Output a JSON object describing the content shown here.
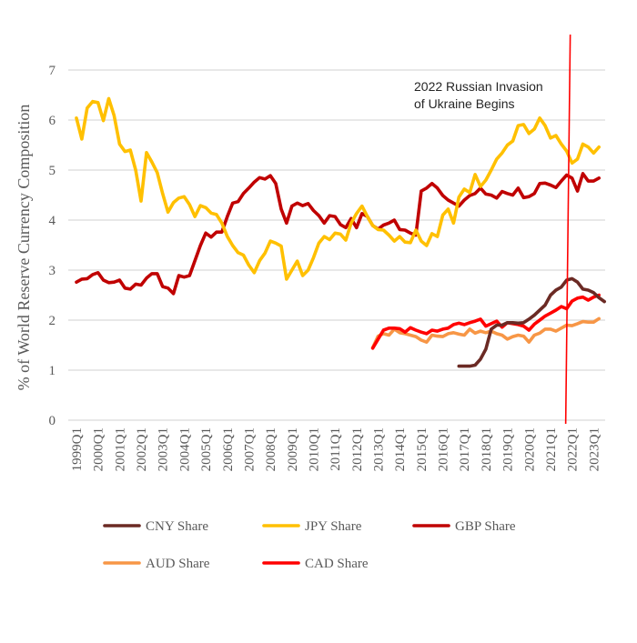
{
  "chart_data": {
    "type": "line",
    "title": "",
    "xlabel": "",
    "ylabel": "% of World Reserve Currency Composition",
    "ylim": [
      0,
      7
    ],
    "yticks": [
      0,
      1,
      2,
      3,
      4,
      5,
      6,
      7
    ],
    "grid": true,
    "legend_position": "bottom",
    "x_start": "1999Q1",
    "x_end": "2023Q2",
    "x_ticklabels": [
      "1999Q1",
      "2000Q1",
      "2001Q1",
      "2002Q1",
      "2003Q1",
      "2004Q1",
      "2005Q1",
      "2006Q1",
      "2007Q1",
      "2008Q1",
      "2009Q1",
      "2010Q1",
      "2011Q1",
      "2012Q1",
      "2013Q1",
      "2014Q1",
      "2015Q1",
      "2016Q1",
      "2017Q1",
      "2018Q1",
      "2019Q1",
      "2020Q1",
      "2021Q1",
      "2022Q1",
      "2023Q1"
    ],
    "annotation": {
      "lines": [
        "2022 Russian Invasion",
        "of Ukraine Begins"
      ],
      "x": "2022Q1",
      "line_color": "#ff0000"
    },
    "series": [
      {
        "name": "CNY Share",
        "color": "#6b2a24",
        "start": "2016Q4",
        "values": [
          1.08,
          1.08,
          1.08,
          1.1,
          1.22,
          1.42,
          1.82,
          1.9,
          1.9,
          1.95,
          1.95,
          1.94,
          1.95,
          2.02,
          2.1,
          2.2,
          2.3,
          2.5,
          2.6,
          2.66,
          2.8,
          2.83,
          2.76,
          2.62,
          2.6,
          2.55,
          2.45,
          2.37
        ]
      },
      {
        "name": "JPY Share",
        "color": "#ffc000",
        "start": "1999Q1",
        "values": [
          6.04,
          5.62,
          6.24,
          6.37,
          6.35,
          5.99,
          6.43,
          6.09,
          5.52,
          5.37,
          5.4,
          5.0,
          4.38,
          5.35,
          5.16,
          4.95,
          4.53,
          4.16,
          4.35,
          4.44,
          4.47,
          4.31,
          4.07,
          4.29,
          4.25,
          4.14,
          4.11,
          3.94,
          3.67,
          3.49,
          3.35,
          3.3,
          3.1,
          2.95,
          3.19,
          3.34,
          3.58,
          3.54,
          3.48,
          2.82,
          3.0,
          3.18,
          2.89,
          3.0,
          3.25,
          3.54,
          3.67,
          3.61,
          3.74,
          3.72,
          3.6,
          3.94,
          4.13,
          4.28,
          4.07,
          3.89,
          3.81,
          3.8,
          3.7,
          3.58,
          3.67,
          3.56,
          3.55,
          3.8,
          3.58,
          3.49,
          3.73,
          3.67,
          4.1,
          4.22,
          3.94,
          4.46,
          4.62,
          4.55,
          4.91,
          4.67,
          4.8,
          5.0,
          5.22,
          5.34,
          5.5,
          5.58,
          5.89,
          5.91,
          5.73,
          5.82,
          6.04,
          5.89,
          5.64,
          5.69,
          5.52,
          5.38,
          5.14,
          5.22,
          5.52,
          5.46,
          5.34,
          5.46
        ]
      },
      {
        "name": "GBP Share",
        "color": "#c00000",
        "start": "1999Q1",
        "values": [
          2.76,
          2.82,
          2.83,
          2.91,
          2.95,
          2.8,
          2.75,
          2.76,
          2.8,
          2.64,
          2.62,
          2.72,
          2.7,
          2.84,
          2.93,
          2.93,
          2.67,
          2.64,
          2.53,
          2.89,
          2.86,
          2.89,
          3.19,
          3.49,
          3.74,
          3.66,
          3.76,
          3.76,
          4.07,
          4.34,
          4.37,
          4.53,
          4.64,
          4.76,
          4.85,
          4.82,
          4.89,
          4.73,
          4.22,
          3.94,
          4.28,
          4.34,
          4.29,
          4.33,
          4.19,
          4.09,
          3.94,
          4.09,
          4.07,
          3.91,
          3.85,
          4.03,
          3.85,
          4.13,
          4.07,
          3.89,
          3.82,
          3.9,
          3.94,
          4.0,
          3.81,
          3.8,
          3.74,
          3.7,
          4.58,
          4.64,
          4.73,
          4.64,
          4.49,
          4.4,
          4.34,
          4.28,
          4.4,
          4.49,
          4.53,
          4.64,
          4.52,
          4.5,
          4.44,
          4.57,
          4.53,
          4.5,
          4.64,
          4.45,
          4.47,
          4.53,
          4.73,
          4.74,
          4.7,
          4.65,
          4.78,
          4.9,
          4.84,
          4.58,
          4.93,
          4.78,
          4.78,
          4.84
        ]
      },
      {
        "name": "AUD Share",
        "color": "#f79646",
        "start": "2012Q4",
        "values": [
          1.45,
          1.68,
          1.73,
          1.7,
          1.82,
          1.75,
          1.73,
          1.7,
          1.67,
          1.6,
          1.56,
          1.7,
          1.68,
          1.67,
          1.73,
          1.75,
          1.72,
          1.7,
          1.82,
          1.74,
          1.78,
          1.75,
          1.78,
          1.73,
          1.7,
          1.62,
          1.67,
          1.7,
          1.68,
          1.56,
          1.7,
          1.74,
          1.82,
          1.82,
          1.78,
          1.84,
          1.9,
          1.89,
          1.93,
          1.97,
          1.96,
          1.96,
          2.03
        ]
      },
      {
        "name": "CAD Share",
        "color": "#ff0000",
        "start": "2012Q4",
        "values": [
          1.44,
          1.62,
          1.8,
          1.84,
          1.84,
          1.83,
          1.76,
          1.85,
          1.8,
          1.76,
          1.73,
          1.8,
          1.78,
          1.82,
          1.84,
          1.91,
          1.94,
          1.91,
          1.95,
          1.98,
          2.02,
          1.88,
          1.93,
          1.98,
          1.86,
          1.95,
          1.93,
          1.91,
          1.88,
          1.8,
          1.92,
          2.0,
          2.08,
          2.14,
          2.2,
          2.27,
          2.23,
          2.38,
          2.44,
          2.46,
          2.4,
          2.46,
          2.5
        ]
      }
    ]
  }
}
